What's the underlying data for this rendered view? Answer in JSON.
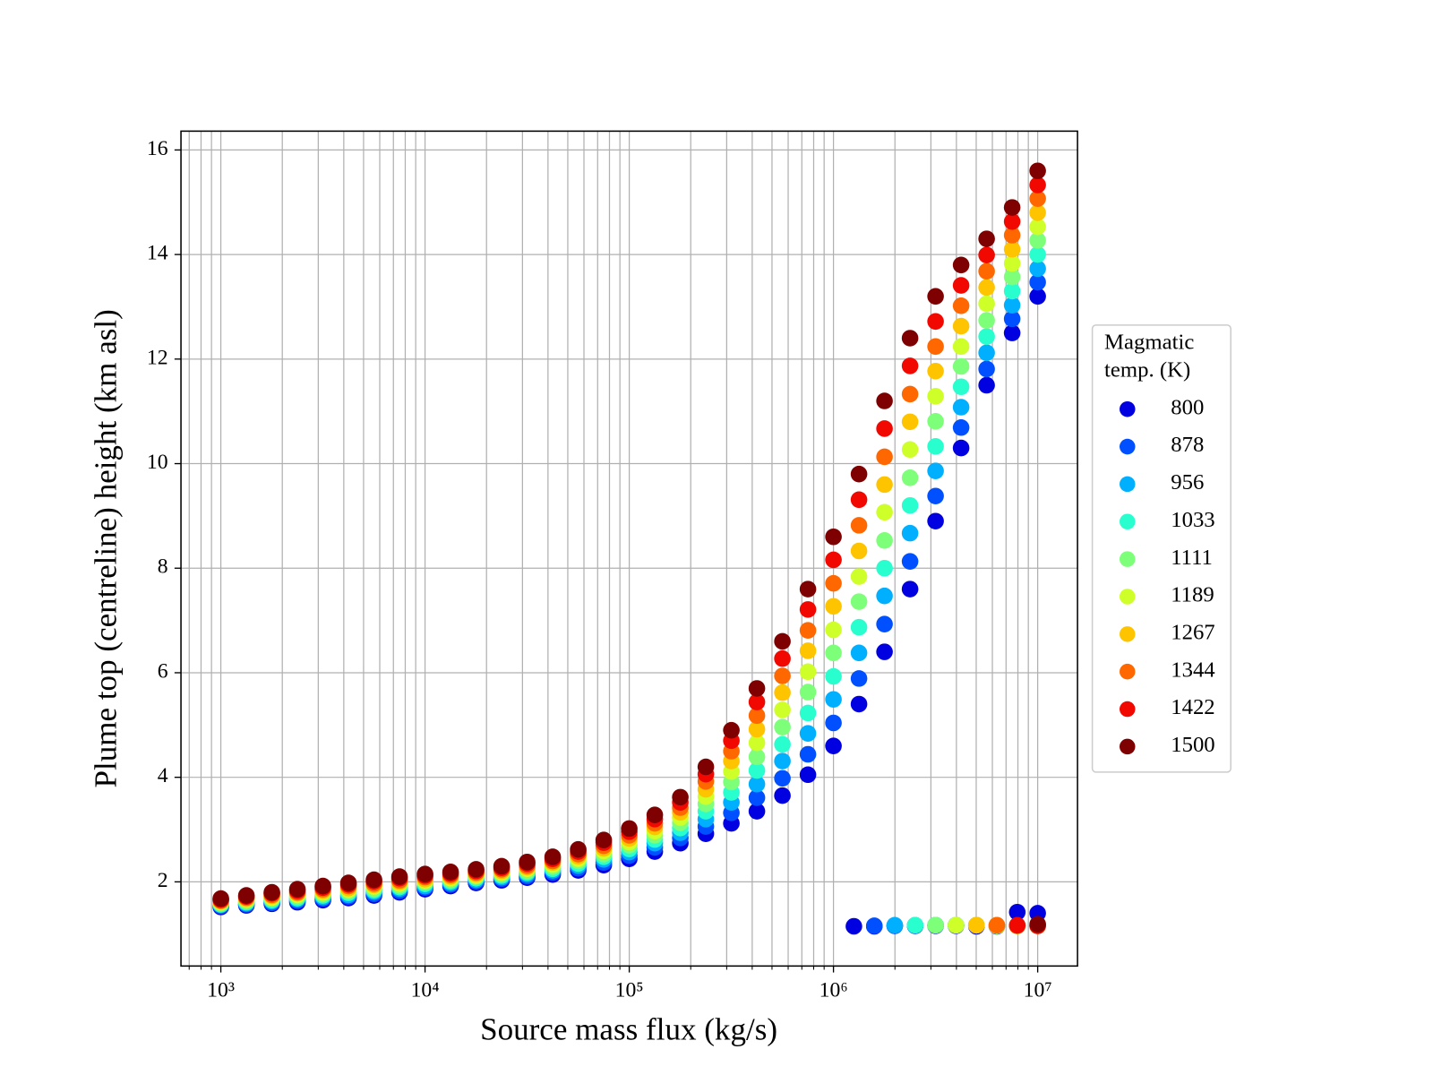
{
  "chart_data": {
    "type": "scatter",
    "xlabel": "Source mass flux (kg/s)",
    "ylabel": "Plume top (centreline) height (km asl)",
    "legend_title": "Magmatic temp. (K)",
    "legend": "right",
    "xscale": "log",
    "grid": true,
    "xlim": [
      638,
      15670000
    ],
    "ylim": [
      0.39,
      16.36
    ],
    "xticks": [
      {
        "value": 1000,
        "label": "10³"
      },
      {
        "value": 10000,
        "label": "10⁴"
      },
      {
        "value": 100000,
        "label": "10⁵"
      },
      {
        "value": 1000000,
        "label": "10⁶"
      },
      {
        "value": 10000000,
        "label": "10⁷"
      }
    ],
    "xticks_minor": [
      700,
      800,
      900,
      2000,
      3000,
      4000,
      5000,
      6000,
      7000,
      8000,
      9000,
      20000,
      30000,
      40000,
      50000,
      60000,
      70000,
      80000,
      90000,
      200000,
      300000,
      400000,
      500000,
      600000,
      700000,
      800000,
      900000,
      2000000,
      3000000,
      4000000,
      5000000,
      6000000,
      7000000,
      8000000,
      9000000
    ],
    "yticks": [
      2,
      4,
      6,
      8,
      10,
      12,
      14,
      16
    ],
    "series": [
      {
        "name": "800",
        "color": "#0000e0",
        "x": [
          1000,
          1334,
          1778,
          2371,
          3162,
          4217,
          5623,
          7499,
          10000,
          13335,
          17783,
          23714,
          31623,
          42170,
          56234,
          74989,
          100000,
          133352,
          177828,
          237137,
          316228,
          421697,
          562341,
          749894,
          1000000,
          1333521,
          1778279,
          2371374,
          3162278,
          4216965,
          5623413,
          7498942,
          10000000,
          1258925,
          1584893,
          1995262,
          2511886,
          3162278,
          3981072,
          5011872,
          6309573,
          7943282,
          10000000
        ],
        "values": [
          1.52,
          1.55,
          1.58,
          1.61,
          1.65,
          1.69,
          1.74,
          1.8,
          1.86,
          1.92,
          1.98,
          2.03,
          2.08,
          2.14,
          2.22,
          2.32,
          2.44,
          2.58,
          2.74,
          2.92,
          3.12,
          3.35,
          3.65,
          4.05,
          4.6,
          5.4,
          6.4,
          7.6,
          8.9,
          10.3,
          11.5,
          12.5,
          13.2,
          1.15,
          1.15,
          1.16,
          1.16,
          1.16,
          1.16,
          1.15,
          1.15,
          1.42,
          1.4
        ]
      },
      {
        "name": "878",
        "color": "#0050ff",
        "x": [
          1000,
          1334,
          1778,
          2371,
          3162,
          4217,
          5623,
          7499,
          10000,
          13335,
          17783,
          23714,
          31623,
          42170,
          56234,
          74989,
          100000,
          133352,
          177828,
          237137,
          316228,
          421697,
          562341,
          749894,
          1000000,
          1333521,
          1778279,
          2371374,
          3162278,
          4216965,
          5623413,
          7498942,
          10000000,
          1584893,
          1995262,
          2511886,
          3162278,
          3981072,
          5011872,
          6309573,
          7943282,
          10000000
        ],
        "values": [
          1.54,
          1.57,
          1.6,
          1.64,
          1.68,
          1.72,
          1.77,
          1.83,
          1.89,
          1.95,
          2.01,
          2.06,
          2.11,
          2.18,
          2.26,
          2.37,
          2.5,
          2.66,
          2.84,
          3.06,
          3.32,
          3.61,
          3.98,
          4.44,
          5.04,
          5.89,
          6.93,
          8.13,
          9.38,
          10.69,
          11.81,
          12.77,
          13.47,
          1.16,
          1.16,
          1.16,
          1.17,
          1.17,
          1.17,
          1.16,
          1.16,
          1.16
        ]
      },
      {
        "name": "956",
        "color": "#00b0ff",
        "x": [
          1000,
          1334,
          1778,
          2371,
          3162,
          4217,
          5623,
          7499,
          10000,
          13335,
          17783,
          23714,
          31623,
          42170,
          56234,
          74989,
          100000,
          133352,
          177828,
          237137,
          316228,
          421697,
          562341,
          749894,
          1000000,
          1333521,
          1778279,
          2371374,
          3162278,
          4216965,
          5623413,
          7498942,
          10000000,
          1995262,
          2511886,
          3162278,
          3981072,
          5011872,
          6309573,
          7943282,
          10000000
        ],
        "values": [
          1.56,
          1.59,
          1.63,
          1.67,
          1.71,
          1.75,
          1.81,
          1.87,
          1.92,
          1.98,
          2.04,
          2.09,
          2.15,
          2.22,
          2.31,
          2.43,
          2.57,
          2.74,
          2.94,
          3.2,
          3.52,
          3.87,
          4.31,
          4.84,
          5.49,
          6.38,
          7.47,
          8.67,
          9.86,
          11.08,
          12.12,
          13.03,
          13.73,
          1.17,
          1.17,
          1.17,
          1.17,
          1.17,
          1.16,
          1.16,
          1.16
        ]
      },
      {
        "name": "1033",
        "color": "#29ffce",
        "x": [
          1000,
          1334,
          1778,
          2371,
          3162,
          4217,
          5623,
          7499,
          10000,
          13335,
          17783,
          23714,
          31623,
          42170,
          56234,
          74989,
          100000,
          133352,
          177828,
          237137,
          316228,
          421697,
          562341,
          749894,
          1000000,
          1333521,
          1778279,
          2371374,
          3162278,
          4216965,
          5623413,
          7498942,
          10000000,
          2511886,
          3162278,
          3981072,
          5011872,
          6309573,
          7943282,
          10000000
        ],
        "values": [
          1.57,
          1.61,
          1.65,
          1.69,
          1.74,
          1.79,
          1.84,
          1.9,
          1.96,
          2.01,
          2.07,
          2.12,
          2.18,
          2.25,
          2.35,
          2.48,
          2.63,
          2.81,
          3.03,
          3.35,
          3.71,
          4.13,
          4.63,
          5.23,
          5.93,
          6.87,
          8.0,
          9.2,
          10.33,
          11.47,
          12.43,
          13.3,
          14.0,
          1.17,
          1.17,
          1.17,
          1.17,
          1.16,
          1.16,
          1.16
        ]
      },
      {
        "name": "1111",
        "color": "#7dff7a",
        "x": [
          1000,
          1334,
          1778,
          2371,
          3162,
          4217,
          5623,
          7499,
          10000,
          13335,
          17783,
          23714,
          31623,
          42170,
          56234,
          74989,
          100000,
          133352,
          177828,
          237137,
          316228,
          421697,
          562341,
          749894,
          1000000,
          1333521,
          1778279,
          2371374,
          3162278,
          4216965,
          5623413,
          7498942,
          10000000,
          3162278,
          3981072,
          5011872,
          6309573,
          7943282,
          10000000
        ],
        "values": [
          1.59,
          1.63,
          1.68,
          1.72,
          1.77,
          1.82,
          1.87,
          1.93,
          1.99,
          2.04,
          2.1,
          2.15,
          2.21,
          2.29,
          2.4,
          2.53,
          2.7,
          2.89,
          3.13,
          3.49,
          3.91,
          4.39,
          4.96,
          5.63,
          6.38,
          7.36,
          8.53,
          9.73,
          10.81,
          11.86,
          12.74,
          13.57,
          14.27,
          1.17,
          1.17,
          1.17,
          1.16,
          1.16,
          1.16
        ]
      },
      {
        "name": "1189",
        "color": "#ceff29",
        "x": [
          1000,
          1334,
          1778,
          2371,
          3162,
          4217,
          5623,
          7499,
          10000,
          13335,
          17783,
          23714,
          31623,
          42170,
          56234,
          74989,
          100000,
          133352,
          177828,
          237137,
          316228,
          421697,
          562341,
          749894,
          1000000,
          1333521,
          1778279,
          2371374,
          3162278,
          4216965,
          5623413,
          7498942,
          10000000,
          3981072,
          5011872,
          6309573,
          7943282,
          10000000
        ],
        "values": [
          1.61,
          1.66,
          1.7,
          1.75,
          1.8,
          1.85,
          1.91,
          1.97,
          2.02,
          2.07,
          2.12,
          2.18,
          2.25,
          2.33,
          2.44,
          2.59,
          2.76,
          2.97,
          3.23,
          3.63,
          4.11,
          4.66,
          5.29,
          6.02,
          6.82,
          7.84,
          9.07,
          10.27,
          11.29,
          12.24,
          13.06,
          13.83,
          14.53,
          1.17,
          1.17,
          1.16,
          1.16,
          1.16
        ]
      },
      {
        "name": "1267",
        "color": "#ffc400",
        "x": [
          1000,
          1334,
          1778,
          2371,
          3162,
          4217,
          5623,
          7499,
          10000,
          13335,
          17783,
          23714,
          31623,
          42170,
          56234,
          74989,
          100000,
          133352,
          177828,
          237137,
          316228,
          421697,
          562341,
          749894,
          1000000,
          1333521,
          1778279,
          2371374,
          3162278,
          4216965,
          5623413,
          7498942,
          10000000,
          5011872,
          6309573,
          7943282,
          10000000
        ],
        "values": [
          1.63,
          1.68,
          1.73,
          1.78,
          1.83,
          1.88,
          1.94,
          2.0,
          2.05,
          2.1,
          2.15,
          2.21,
          2.28,
          2.37,
          2.49,
          2.64,
          2.83,
          3.05,
          3.33,
          3.77,
          4.31,
          4.92,
          5.62,
          6.42,
          7.27,
          8.33,
          9.6,
          10.8,
          11.77,
          12.63,
          13.37,
          14.1,
          14.8,
          1.17,
          1.17,
          1.16,
          1.16
        ]
      },
      {
        "name": "1344",
        "color": "#ff6800",
        "x": [
          1000,
          1334,
          1778,
          2371,
          3162,
          4217,
          5623,
          7499,
          10000,
          13335,
          17783,
          23714,
          31623,
          42170,
          56234,
          74989,
          100000,
          133352,
          177828,
          237137,
          316228,
          421697,
          562341,
          749894,
          1000000,
          1333521,
          1778279,
          2371374,
          3162278,
          4216965,
          5623413,
          7498942,
          10000000,
          6309573,
          7943282,
          10000000
        ],
        "values": [
          1.64,
          1.7,
          1.75,
          1.8,
          1.86,
          1.92,
          1.97,
          2.03,
          2.09,
          2.13,
          2.18,
          2.24,
          2.31,
          2.4,
          2.53,
          2.69,
          2.89,
          3.12,
          3.42,
          3.92,
          4.5,
          5.18,
          5.94,
          6.81,
          7.71,
          8.82,
          10.13,
          11.33,
          12.24,
          13.02,
          13.68,
          14.37,
          15.07,
          1.17,
          1.16,
          1.16
        ]
      },
      {
        "name": "1422",
        "color": "#f10800",
        "x": [
          1000,
          1334,
          1778,
          2371,
          3162,
          4217,
          5623,
          7499,
          10000,
          13335,
          17783,
          23714,
          31623,
          42170,
          56234,
          74989,
          100000,
          133352,
          177828,
          237137,
          316228,
          421697,
          562341,
          749894,
          1000000,
          1333521,
          1778279,
          2371374,
          3162278,
          4216965,
          5623413,
          7498942,
          10000000,
          7943282,
          10000000
        ],
        "values": [
          1.66,
          1.72,
          1.78,
          1.83,
          1.89,
          1.95,
          2.01,
          2.07,
          2.12,
          2.16,
          2.21,
          2.27,
          2.35,
          2.44,
          2.58,
          2.75,
          2.96,
          3.2,
          3.52,
          4.06,
          4.7,
          5.44,
          6.27,
          7.21,
          8.16,
          9.31,
          10.67,
          11.87,
          12.72,
          13.41,
          13.99,
          14.63,
          15.33,
          1.17,
          1.16
        ]
      },
      {
        "name": "1500",
        "color": "#7f0000",
        "x": [
          1000,
          1334,
          1778,
          2371,
          3162,
          4217,
          5623,
          7499,
          10000,
          13335,
          17783,
          23714,
          31623,
          42170,
          56234,
          74989,
          100000,
          133352,
          177828,
          237137,
          316228,
          421697,
          562341,
          749894,
          1000000,
          1333521,
          1778279,
          2371374,
          3162278,
          4216965,
          5623413,
          7498942,
          10000000,
          10000000
        ],
        "values": [
          1.68,
          1.74,
          1.8,
          1.86,
          1.92,
          1.98,
          2.04,
          2.1,
          2.15,
          2.19,
          2.24,
          2.3,
          2.38,
          2.48,
          2.62,
          2.8,
          3.02,
          3.28,
          3.62,
          4.2,
          4.9,
          5.7,
          6.6,
          7.6,
          8.6,
          9.8,
          11.2,
          12.4,
          13.2,
          13.8,
          14.3,
          14.9,
          15.6,
          1.19
        ]
      }
    ]
  }
}
